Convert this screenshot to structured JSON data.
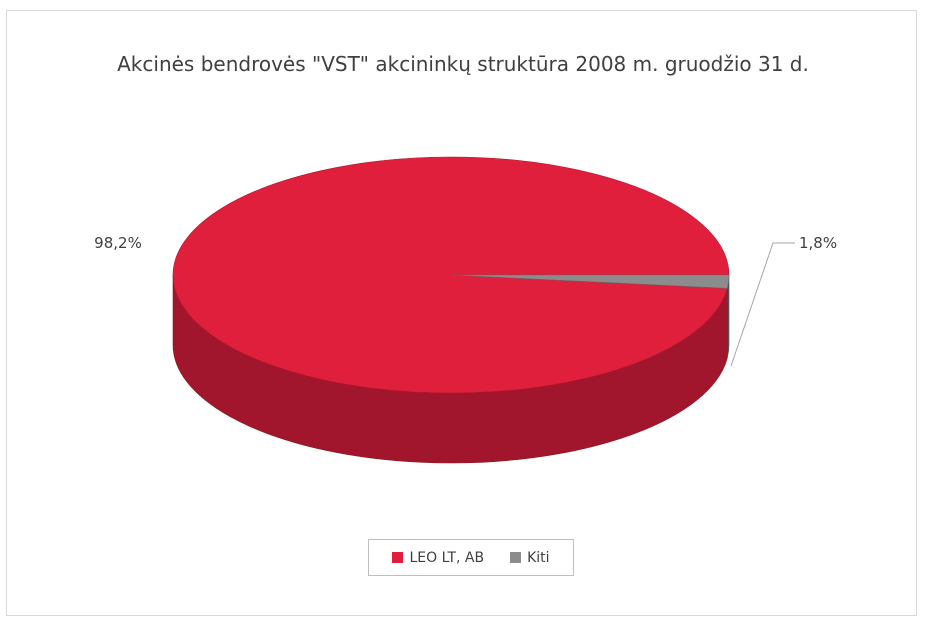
{
  "chart_data": {
    "type": "pie",
    "title": "Akcinės bendrovės \"VST\" akcininkų struktūra 2008 m. gruodžio 31 d.",
    "labels": [
      "LEO LT, AB",
      "Kiti"
    ],
    "values": [
      98.2,
      1.8
    ],
    "data_labels": [
      "98,2%",
      "1,8%"
    ],
    "colors": [
      "#e01f3d",
      "#8c8c8c"
    ],
    "style": "3d",
    "legend_position": "bottom"
  }
}
